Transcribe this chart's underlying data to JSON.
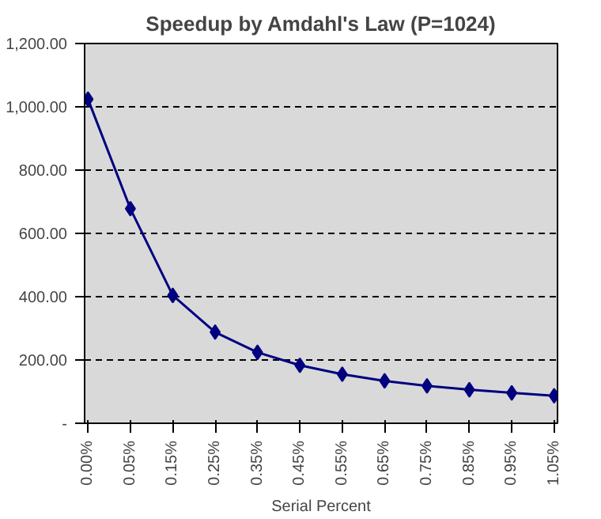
{
  "chart_data": {
    "type": "line",
    "title": "Speedup by Amdahl's Law (P=1024)",
    "xlabel": "Serial Percent",
    "categories": [
      "0.00%",
      "0.05%",
      "0.15%",
      "0.25%",
      "0.35%",
      "0.45%",
      "0.55%",
      "0.65%",
      "0.75%",
      "0.85%",
      "0.95%",
      "1.05%"
    ],
    "series": [
      {
        "color": "#000080",
        "values": [
          1024,
          678,
          404,
          288,
          224,
          183,
          155,
          134,
          118,
          106,
          96,
          87
        ]
      }
    ],
    "ylim": [
      0,
      1200
    ],
    "yticks": [
      {
        "value": 0,
        "label": "-"
      },
      {
        "value": 200,
        "label": "200.00"
      },
      {
        "value": 400,
        "label": "400.00"
      },
      {
        "value": 600,
        "label": "600.00"
      },
      {
        "value": 800,
        "label": "800.00"
      },
      {
        "value": 1000,
        "label": "1,000.00"
      },
      {
        "value": 1200,
        "label": "1,200.00"
      }
    ],
    "grid": "y",
    "marker": "diamond",
    "line_style": "solid"
  }
}
